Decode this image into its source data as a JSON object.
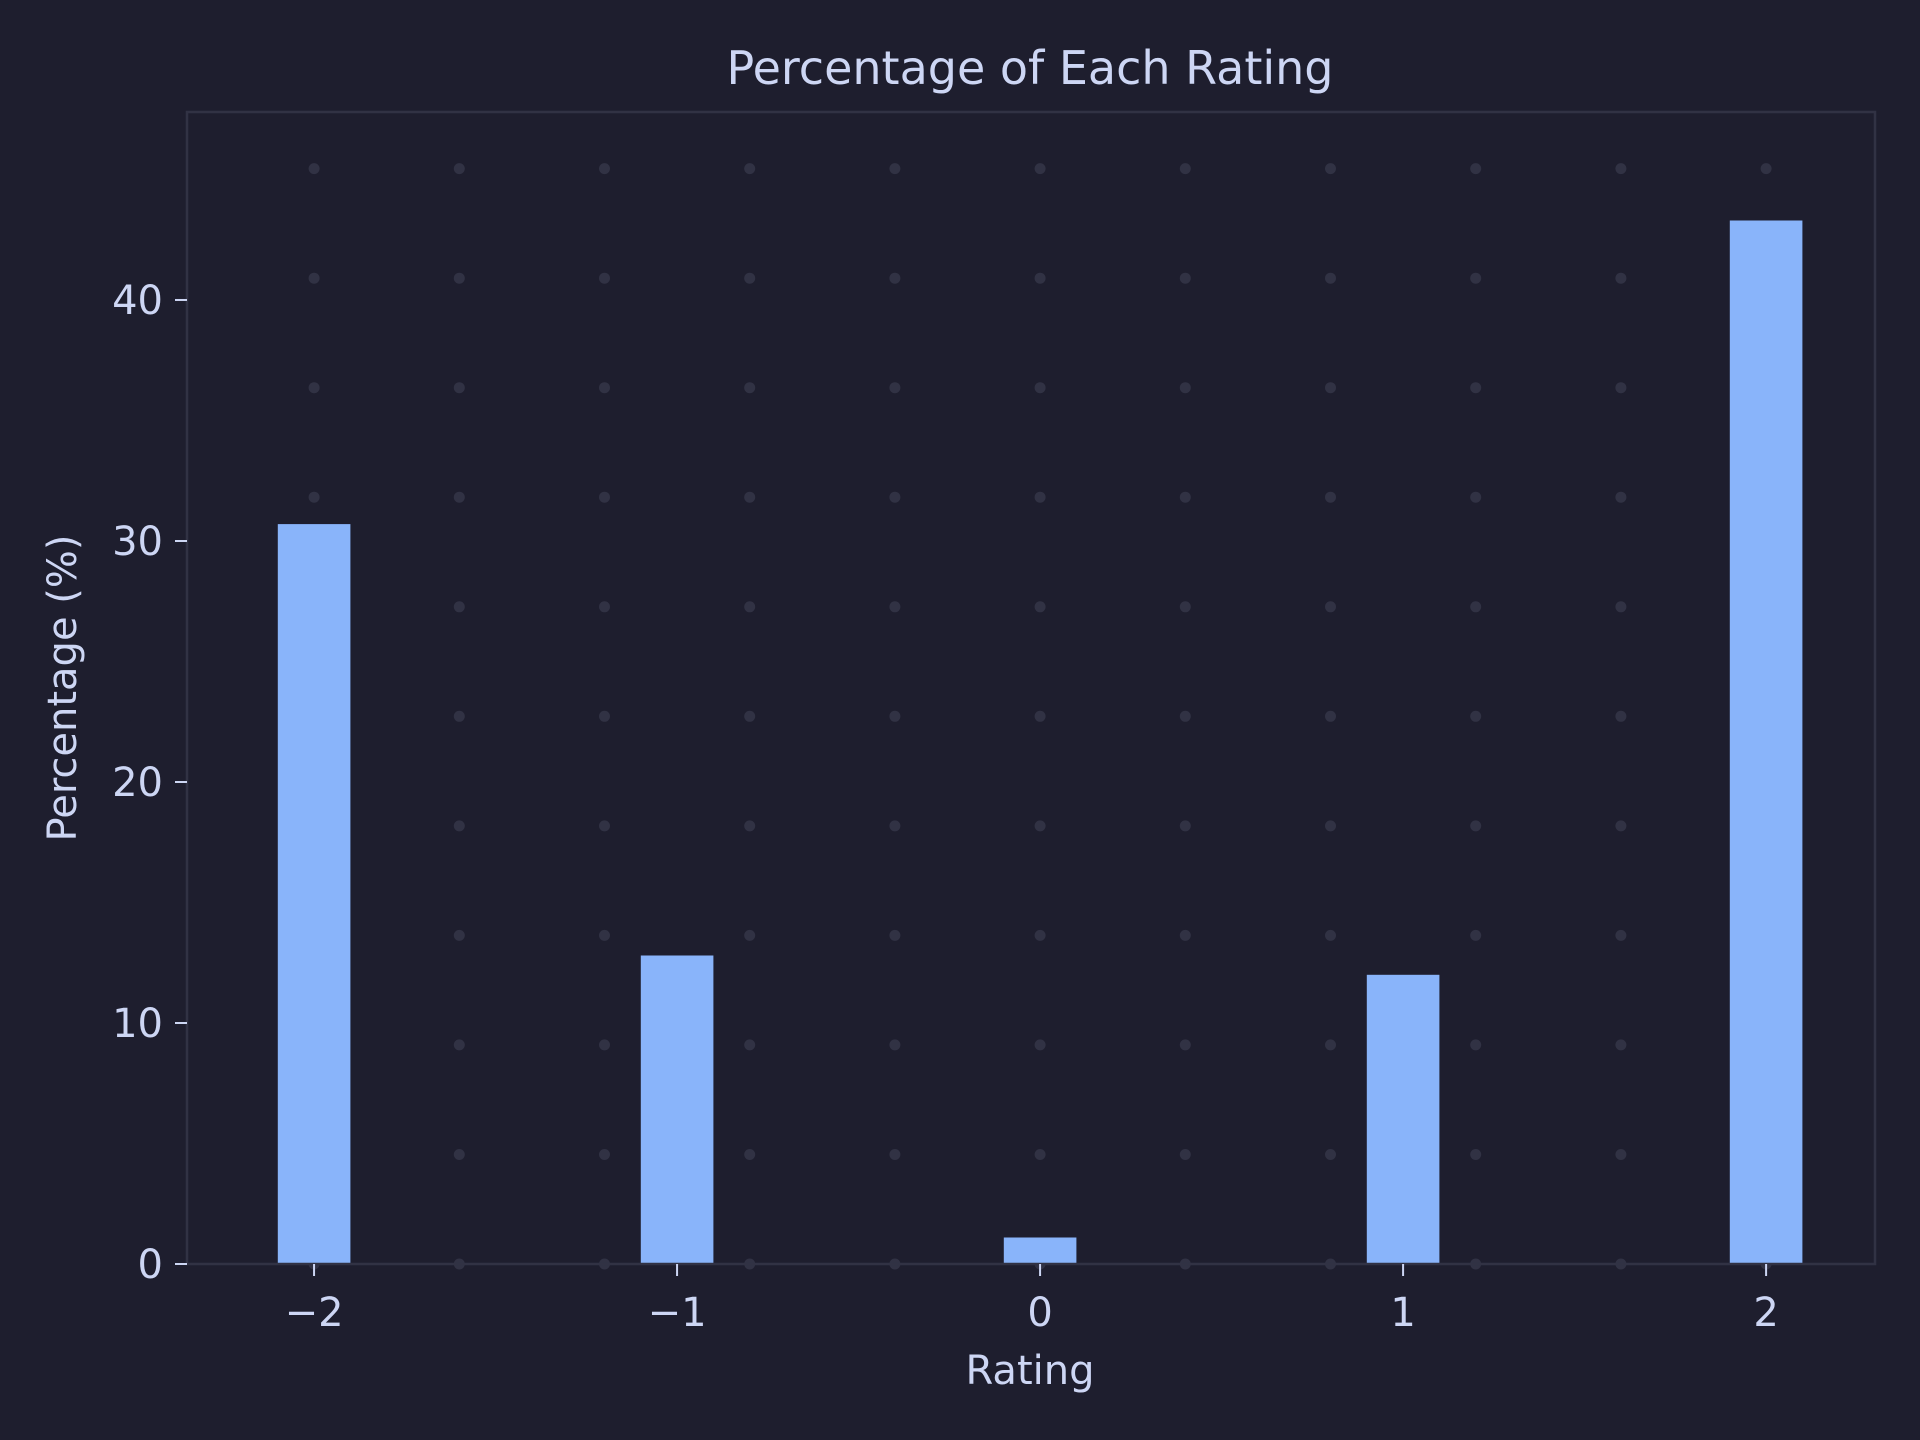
{
  "chart_data": {
    "type": "bar",
    "title": "Percentage of Each Rating",
    "xlabel": "Rating",
    "ylabel": "Percentage (%)",
    "categories": [
      -2,
      -1,
      0,
      1,
      2
    ],
    "category_labels": [
      "−2",
      "−1",
      "0",
      "1",
      "2"
    ],
    "values": [
      30.7,
      12.8,
      1.1,
      12.0,
      43.3
    ],
    "xlim": [
      -2.35,
      2.3
    ],
    "ylim": [
      0,
      47.8
    ],
    "y_ticks": [
      0,
      10,
      20,
      30,
      40
    ],
    "y_tick_labels": [
      "0",
      "10",
      "20",
      "30",
      "40"
    ],
    "grid": "dotted",
    "legend": "none"
  },
  "colors": {
    "background": "#1e1e2e",
    "bar": "#89b4fa",
    "text": "#cdd6f4",
    "axis": "#313244",
    "grid_dot": "#313244"
  }
}
